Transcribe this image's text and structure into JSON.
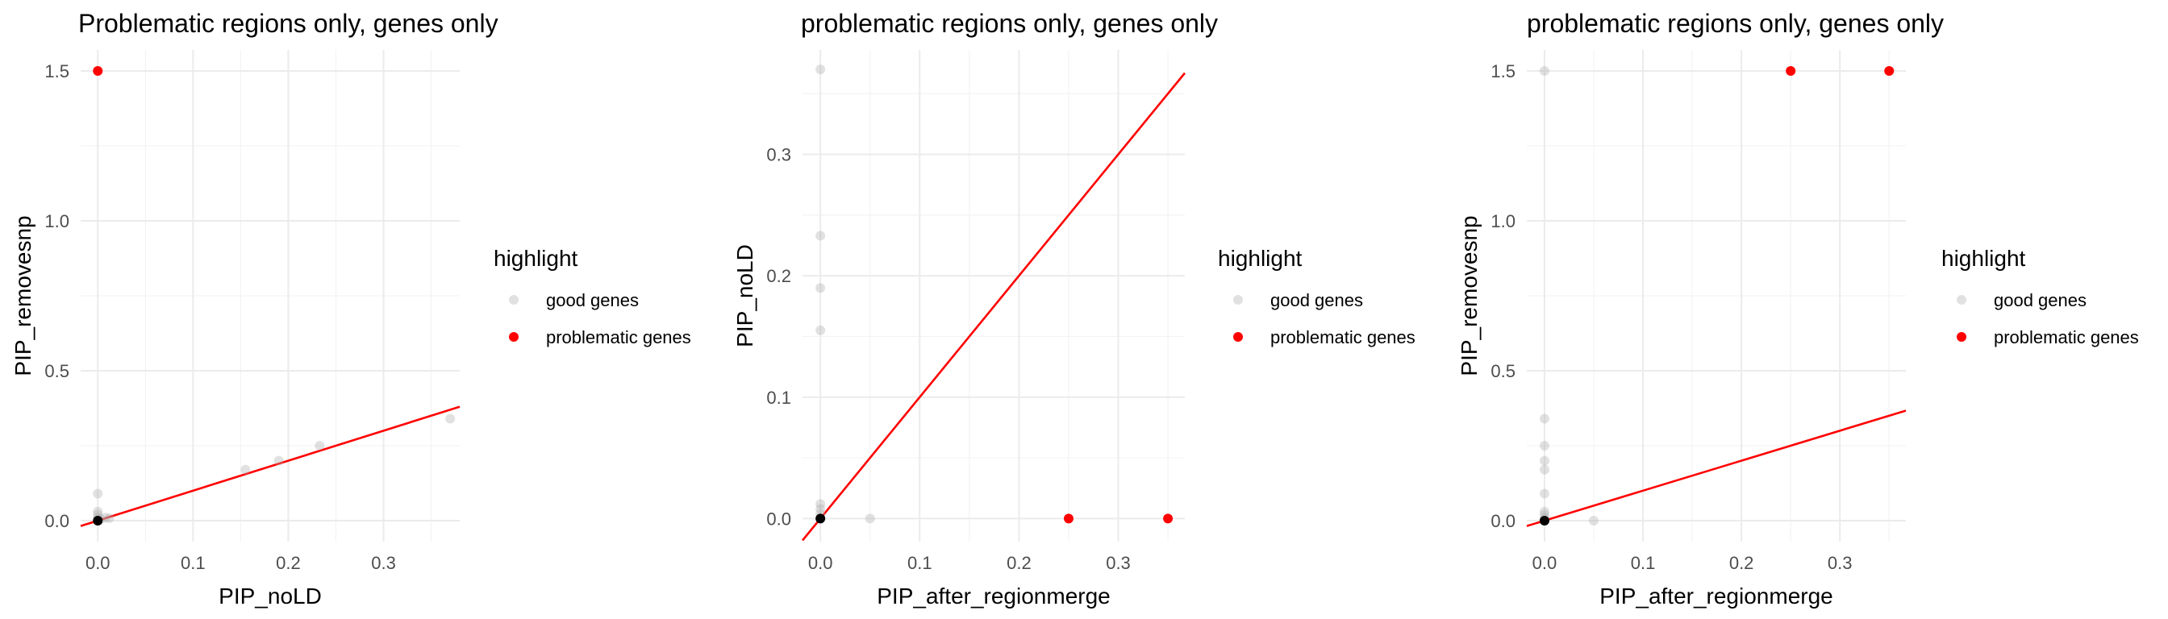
{
  "chart_data": [
    {
      "type": "scatter",
      "title": "Problematic regions only, genes only",
      "xlabel": "PIP_noLD",
      "ylabel": "PIP_removesnp",
      "xlim": [
        -0.018,
        0.38
      ],
      "ylim": [
        -0.07,
        1.57
      ],
      "x_ticks": [
        0.0,
        0.1,
        0.2,
        0.3
      ],
      "x_tick_labels": [
        "0.0",
        "0.1",
        "0.2",
        "0.3"
      ],
      "y_ticks": [
        0.0,
        0.5,
        1.0,
        1.5
      ],
      "y_tick_labels": [
        "0.0",
        "0.5",
        "1.0",
        "1.5"
      ],
      "grid": true,
      "legend_position": "right",
      "legend_title": "highlight",
      "series": [
        {
          "name": "good genes",
          "color": "#d3d3d3",
          "points": [
            [
              0.0,
              0.0
            ],
            [
              0.0,
              0.01
            ],
            [
              0.0,
              0.02
            ],
            [
              0.0,
              0.03
            ],
            [
              0.0,
              0.09
            ],
            [
              0.003,
              0.005
            ],
            [
              0.008,
              0.01
            ],
            [
              0.012,
              0.008
            ],
            [
              0.155,
              0.17
            ],
            [
              0.19,
              0.2
            ],
            [
              0.233,
              0.25
            ],
            [
              0.37,
              0.34
            ]
          ]
        },
        {
          "name": "problematic genes",
          "color": "#ff0000",
          "points": [
            [
              0.0,
              1.5
            ]
          ]
        }
      ],
      "black_points": [
        [
          0.0,
          0.0
        ]
      ],
      "ref_line": {
        "slope": 1,
        "intercept": 0,
        "color": "#ff0000"
      }
    },
    {
      "type": "scatter",
      "title": "problematic regions only, genes only",
      "xlabel": "PIP_after_regionmerge",
      "ylabel": "PIP_noLD",
      "xlim": [
        -0.018,
        0.367
      ],
      "ylim": [
        -0.019,
        0.386
      ],
      "x_ticks": [
        0.0,
        0.1,
        0.2,
        0.3
      ],
      "x_tick_labels": [
        "0.0",
        "0.1",
        "0.2",
        "0.3"
      ],
      "y_ticks": [
        0.0,
        0.1,
        0.2,
        0.3
      ],
      "y_tick_labels": [
        "0.0",
        "0.1",
        "0.2",
        "0.3"
      ],
      "grid": true,
      "legend_position": "right",
      "legend_title": "highlight",
      "series": [
        {
          "name": "good genes",
          "color": "#d3d3d3",
          "points": [
            [
              0.0,
              0.37
            ],
            [
              0.0,
              0.233
            ],
            [
              0.0,
              0.19
            ],
            [
              0.0,
              0.155
            ],
            [
              0.0,
              0.012
            ],
            [
              0.0,
              0.008
            ],
            [
              0.0,
              0.004
            ],
            [
              0.0,
              0.0
            ],
            [
              0.05,
              0.0
            ]
          ]
        },
        {
          "name": "problematic genes",
          "color": "#ff0000",
          "points": [
            [
              0.25,
              0.0
            ],
            [
              0.35,
              0.0
            ]
          ]
        }
      ],
      "black_points": [
        [
          0.0,
          0.0
        ]
      ],
      "ref_line": {
        "slope": 1,
        "intercept": 0,
        "color": "#ff0000"
      }
    },
    {
      "type": "scatter",
      "title": "problematic regions only, genes only",
      "xlabel": "PIP_after_regionmerge",
      "ylabel": "PIP_removesnp",
      "xlim": [
        -0.018,
        0.367
      ],
      "ylim": [
        -0.07,
        1.57
      ],
      "x_ticks": [
        0.0,
        0.1,
        0.2,
        0.3
      ],
      "x_tick_labels": [
        "0.0",
        "0.1",
        "0.2",
        "0.3"
      ],
      "y_ticks": [
        0.0,
        0.5,
        1.0,
        1.5
      ],
      "y_tick_labels": [
        "0.0",
        "0.5",
        "1.0",
        "1.5"
      ],
      "grid": true,
      "legend_position": "right",
      "legend_title": "highlight",
      "series": [
        {
          "name": "good genes",
          "color": "#d3d3d3",
          "points": [
            [
              0.0,
              1.5
            ],
            [
              0.0,
              0.34
            ],
            [
              0.0,
              0.25
            ],
            [
              0.0,
              0.2
            ],
            [
              0.0,
              0.17
            ],
            [
              0.0,
              0.09
            ],
            [
              0.0,
              0.03
            ],
            [
              0.0,
              0.02
            ],
            [
              0.0,
              0.01
            ],
            [
              0.05,
              0.0
            ]
          ]
        },
        {
          "name": "problematic genes",
          "color": "#ff0000",
          "points": [
            [
              0.25,
              1.5
            ],
            [
              0.35,
              1.5
            ]
          ]
        }
      ],
      "black_points": [
        [
          0.0,
          0.0
        ]
      ],
      "ref_line": {
        "slope": 1,
        "intercept": 0,
        "color": "#ff0000"
      }
    }
  ]
}
